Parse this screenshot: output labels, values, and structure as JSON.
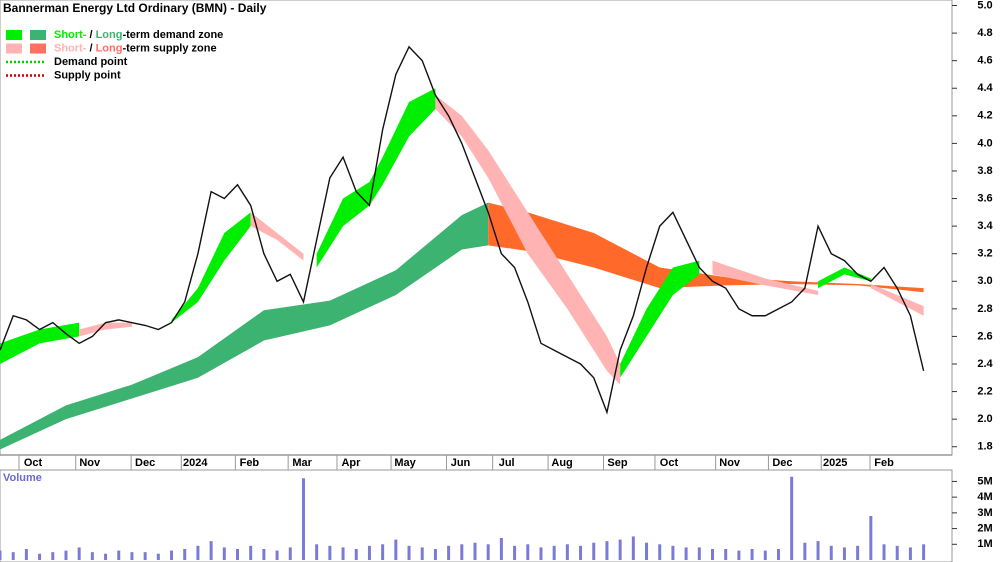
{
  "chart_data": [
    {
      "type": "line",
      "title": "Bannerman Energy Ltd Ordinary (BMN) - Daily",
      "legend": [
        {
          "short": "Short-",
          "sep": " / ",
          "long": "Long",
          "rest": "-term demand zone",
          "short_color": "#00ee00",
          "long_color": "#3cb371"
        },
        {
          "short": "Short-",
          "sep": " / ",
          "long": "Long",
          "rest": "-term supply zone",
          "short_color": "#ffb3b3",
          "long_color": "#ff7060"
        },
        {
          "text": "Demand point",
          "color": "#00cc00"
        },
        {
          "text": "Supply point",
          "color": "#cc0000"
        }
      ],
      "xlim": [
        0,
        72
      ],
      "xticks": [
        {
          "value": 2.5,
          "label": "Oct"
        },
        {
          "value": 6.8,
          "label": "Nov"
        },
        {
          "value": 11,
          "label": "Dec"
        },
        {
          "value": 14.8,
          "label": "2024"
        },
        {
          "value": 18.9,
          "label": "Feb"
        },
        {
          "value": 22.9,
          "label": "Mar"
        },
        {
          "value": 26.6,
          "label": "Apr"
        },
        {
          "value": 30.7,
          "label": "May"
        },
        {
          "value": 34.9,
          "label": "Jun"
        },
        {
          "value": 38.4,
          "label": "Jul"
        },
        {
          "value": 42.6,
          "label": "Aug"
        },
        {
          "value": 46.8,
          "label": "Sep"
        },
        {
          "value": 50.7,
          "label": "Oct"
        },
        {
          "value": 55.3,
          "label": "Nov"
        },
        {
          "value": 59.3,
          "label": "Dec"
        },
        {
          "value": 63.3,
          "label": "2025"
        },
        {
          "value": 67,
          "label": "Feb"
        }
      ],
      "ylim": [
        1.74,
        5.04
      ],
      "yticks": [
        1.8,
        {
          "value": 2,
          "label": "2.0"
        },
        2.2,
        2.4,
        2.6,
        2.8,
        {
          "value": 3,
          "label": "3.0"
        },
        3.2,
        3.4,
        3.6,
        3.8,
        {
          "value": 4,
          "label": "4.0"
        },
        4.2,
        4.4,
        4.6,
        4.8,
        {
          "value": 5,
          "label": "5.0"
        }
      ],
      "x": [
        0,
        1,
        2,
        3,
        4,
        5,
        6,
        7,
        8,
        9,
        10,
        11,
        12,
        13,
        14,
        15,
        16,
        17,
        18,
        19,
        20,
        21,
        22,
        23,
        24,
        25,
        26,
        27,
        28,
        29,
        30,
        31,
        32,
        33,
        34,
        35,
        36,
        37,
        38,
        39,
        40,
        41,
        42,
        43,
        44,
        45,
        46,
        47,
        48,
        49,
        50,
        51,
        52,
        53,
        54,
        55,
        56,
        57,
        58,
        59,
        60,
        61,
        62,
        63,
        64,
        65,
        66,
        67,
        68,
        69,
        70
      ],
      "series": [
        {
          "color": "#111111",
          "values": [
            2.5,
            2.75,
            2.72,
            2.65,
            2.7,
            2.62,
            2.55,
            2.6,
            2.7,
            2.72,
            2.7,
            2.68,
            2.65,
            2.7,
            2.85,
            3.2,
            3.65,
            3.6,
            3.7,
            3.55,
            3.2,
            3.0,
            3.05,
            2.85,
            3.3,
            3.75,
            3.9,
            3.65,
            3.55,
            4.1,
            4.5,
            4.7,
            4.6,
            4.35,
            4.2,
            4.0,
            3.75,
            3.5,
            3.2,
            3.1,
            2.85,
            2.55,
            2.5,
            2.45,
            2.4,
            2.3,
            2.05,
            2.5,
            2.75,
            3.1,
            3.4,
            3.5,
            3.3,
            3.1,
            3.0,
            2.95,
            2.8,
            2.75,
            2.75,
            2.8,
            2.85,
            2.95,
            3.4,
            3.2,
            3.15,
            3.05,
            3.0,
            3.1,
            2.95,
            2.75,
            2.35
          ]
        }
      ],
      "bands": [
        {
          "legend": 1,
          "color": "#3cb371",
          "x": [
            0,
            5,
            10,
            15,
            20,
            25,
            30,
            35,
            37
          ],
          "lower": [
            1.78,
            2.0,
            2.15,
            2.3,
            2.57,
            2.68,
            2.9,
            3.23,
            3.26
          ],
          "upper": [
            1.85,
            2.1,
            2.25,
            2.45,
            2.79,
            2.86,
            3.08,
            3.48,
            3.57
          ]
        },
        {
          "legend": 1,
          "color": "#ff6a2a",
          "x": [
            37,
            40,
            45,
            50,
            55,
            60,
            65,
            70
          ],
          "lower": [
            3.26,
            3.22,
            3.1,
            2.95,
            2.97,
            2.98,
            2.97,
            2.92
          ],
          "upper": [
            3.57,
            3.5,
            3.35,
            3.1,
            3.03,
            3.0,
            2.98,
            2.95
          ]
        },
        {
          "legend": 0,
          "color": "#00ee00",
          "x": [
            0,
            3,
            6,
            7,
            13,
            15,
            17,
            19,
            20,
            24,
            26,
            28,
            29,
            31,
            33,
            34,
            47,
            49,
            51,
            53,
            54,
            62,
            64,
            66
          ],
          "lower": [
            2.4,
            2.55,
            2.6,
            null,
            2.7,
            2.85,
            3.15,
            3.4,
            null,
            3.1,
            3.4,
            3.55,
            3.7,
            4.05,
            4.25,
            null,
            2.3,
            2.6,
            2.9,
            3.05,
            null,
            2.95,
            3.05,
            3.0
          ],
          "upper": [
            2.55,
            2.65,
            2.7,
            null,
            2.72,
            2.95,
            3.35,
            3.5,
            null,
            3.2,
            3.6,
            3.72,
            3.9,
            4.3,
            4.4,
            null,
            2.4,
            2.8,
            3.1,
            3.15,
            null,
            3.0,
            3.1,
            3.02
          ]
        },
        {
          "legend": 1,
          "color": "#ffb3b3",
          "x": [
            6,
            8,
            10,
            11,
            19,
            21,
            23,
            24,
            33,
            35,
            37,
            40,
            43,
            46,
            47,
            48,
            54,
            58,
            62,
            63,
            66,
            70
          ],
          "lower": [
            2.6,
            2.65,
            2.67,
            null,
            3.4,
            3.3,
            3.15,
            null,
            4.25,
            4.05,
            3.75,
            3.2,
            2.8,
            2.35,
            2.25,
            null,
            3.05,
            2.97,
            2.9,
            null,
            2.95,
            2.75
          ],
          "upper": [
            2.65,
            2.7,
            2.7,
            null,
            3.5,
            3.35,
            3.2,
            null,
            4.35,
            4.2,
            3.95,
            3.5,
            3.05,
            2.6,
            2.4,
            null,
            3.15,
            3.02,
            2.93,
            null,
            2.98,
            2.82
          ]
        }
      ]
    },
    {
      "type": "bar",
      "title": "Volume",
      "color": "#7b7bd6",
      "ylim": [
        0,
        5600000
      ],
      "yticks": [
        {
          "value": 1000000,
          "label": "1M"
        },
        {
          "value": 2000000,
          "label": "2M"
        },
        {
          "value": 3000000,
          "label": "3M"
        },
        {
          "value": 4000000,
          "label": "4M"
        },
        {
          "value": 5000000,
          "label": "5M"
        }
      ],
      "values": [
        600000,
        500000,
        700000,
        400000,
        500000,
        600000,
        800000,
        500000,
        400000,
        600000,
        500000,
        500000,
        400000,
        600000,
        700000,
        900000,
        1200000,
        800000,
        700000,
        900000,
        700000,
        600000,
        800000,
        5200000,
        1000000,
        900000,
        800000,
        700000,
        900000,
        1000000,
        1300000,
        900000,
        800000,
        700000,
        900000,
        1000000,
        1100000,
        1000000,
        1400000,
        900000,
        1000000,
        800000,
        900000,
        1000000,
        900000,
        1100000,
        1200000,
        1300000,
        1500000,
        1100000,
        1000000,
        900000,
        800000,
        800000,
        700000,
        700000,
        600000,
        700000,
        600000,
        700000,
        5300000,
        1100000,
        1200000,
        900000,
        800000,
        900000,
        2800000,
        1000000,
        900000,
        800000,
        1000000
      ]
    }
  ]
}
